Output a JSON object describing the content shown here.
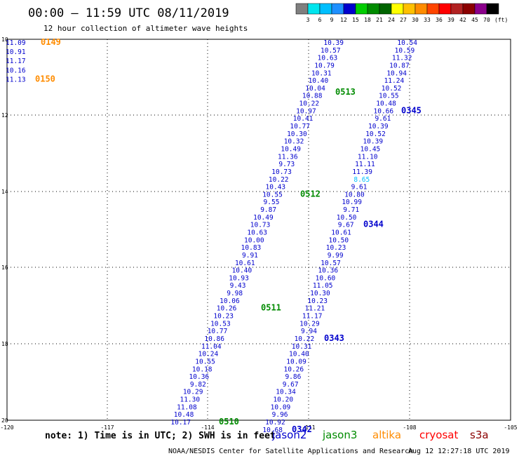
{
  "header": {
    "title": "00:00 – 11:59 UTC 08/11/2019",
    "subtitle": "12 hour collection of altimeter wave heights"
  },
  "colorbar": {
    "unit": "(ft)",
    "labels": [
      "3",
      "6",
      "9",
      "12",
      "15",
      "18",
      "21",
      "24",
      "27",
      "30",
      "33",
      "36",
      "39",
      "42",
      "45",
      "70"
    ],
    "colors": [
      "#7f7f7f",
      "#00e5ee",
      "#00bfff",
      "#1e90ff",
      "#0000cd",
      "#00cd00",
      "#008b00",
      "#006400",
      "#ffff00",
      "#ffc000",
      "#ff8c00",
      "#ff4500",
      "#ff0000",
      "#b22222",
      "#8b0000",
      "#8b008b",
      "#000000"
    ]
  },
  "map": {
    "x_ticks": [
      "-120",
      "-117",
      "-114",
      "-111",
      "-108",
      "-105"
    ],
    "y_ticks": [
      "10",
      "12",
      "14",
      "16",
      "18",
      "20"
    ]
  },
  "track_colors": {
    "jason2": "#0000cd",
    "jason3": "#008b00",
    "altika": "#ff8c00",
    "cryosat": "#ff0000",
    "s3a": "#8b0000",
    "highlight": "#00bfff"
  },
  "tracks": [
    {
      "id": "altika-left",
      "label_color": "altika",
      "value_color": "jason2",
      "values": [
        "11.09",
        "10.91",
        "11.17",
        "10.16",
        "11.13"
      ],
      "time_labels": [
        {
          "text": "0149",
          "at": 0
        },
        {
          "text": "0150",
          "at": 4
        }
      ]
    },
    {
      "id": "track-510-513",
      "label_color": "jason3",
      "value_color": "jason2",
      "values": [
        "10.39",
        "10.57",
        "10.63",
        "10.79",
        "10.31",
        "10.40",
        "10.04",
        "10.88",
        "10.22",
        "10.97",
        "10.41",
        "10.77",
        "10.30",
        "10.32",
        "10.49",
        "11.36",
        "9.73",
        "10.73",
        "10.22",
        "10.43",
        "10.55",
        "9.55",
        "9.87",
        "10.49",
        "10.73",
        "10.63",
        "10.00",
        "10.83",
        "9.91",
        "10.61",
        "10.40",
        "10.93",
        "9.43",
        "9.98",
        "10.06",
        "10.26",
        "10.23",
        "10.53",
        "10.77",
        "10.86",
        "11.04",
        "10.24",
        "10.55",
        "10.18",
        "10.36",
        "9.82",
        "10.29",
        "11.30",
        "11.08",
        "10.48",
        "10.17"
      ],
      "time_labels": [
        {
          "text": "0513",
          "at": 6
        },
        {
          "text": "0512",
          "at": 20
        },
        {
          "text": "0511",
          "at": 35
        },
        {
          "text": "0510",
          "at": 50
        }
      ]
    },
    {
      "id": "track-342-345",
      "label_color": "jason2",
      "value_color": "jason2",
      "values": [
        "10.54",
        "10.59",
        "11.32",
        "10.87",
        "10.94",
        "11.24",
        "10.52",
        "10.55",
        "10.48",
        "10.66",
        "9.61",
        "10.39",
        "10.52",
        "10.39",
        "10.45",
        "11.10",
        "11.11",
        "11.39",
        "8.65",
        "9.61",
        "10.80",
        "10.99",
        "9.71",
        "10.50",
        "9.67",
        "10.61",
        "10.50",
        "10.23",
        "9.99",
        "10.57",
        "10.36",
        "10.60",
        "11.05",
        "10.30",
        "10.23",
        "11.21",
        "11.17",
        "10.29",
        "9.94",
        "10.22",
        "10.31",
        "10.40",
        "10.09",
        "10.26",
        "9.86",
        "9.67",
        "10.34",
        "10.20",
        "10.09",
        "9.96",
        "10.92",
        "10.68"
      ],
      "highlight_index": 18,
      "time_labels": [
        {
          "text": "0345",
          "at": 9
        },
        {
          "text": "0344",
          "at": 24
        },
        {
          "text": "0343",
          "at": 39
        },
        {
          "text": "0342",
          "at": 51
        }
      ]
    }
  ],
  "legend": {
    "note": "note: 1) Time is in UTC; 2) SWH is in feet",
    "items": [
      {
        "name": "jason2",
        "color": "jason2"
      },
      {
        "name": "jason3",
        "color": "jason3"
      },
      {
        "name": "altika",
        "color": "altika"
      },
      {
        "name": "cryosat",
        "color": "cryosat"
      },
      {
        "name": "s3a",
        "color": "s3a"
      }
    ]
  },
  "footer": {
    "credit": "NOAA/NESDIS Center for Satellite Applications and Research",
    "timestamp": "Aug 12 12:27:18 UTC 2019"
  }
}
